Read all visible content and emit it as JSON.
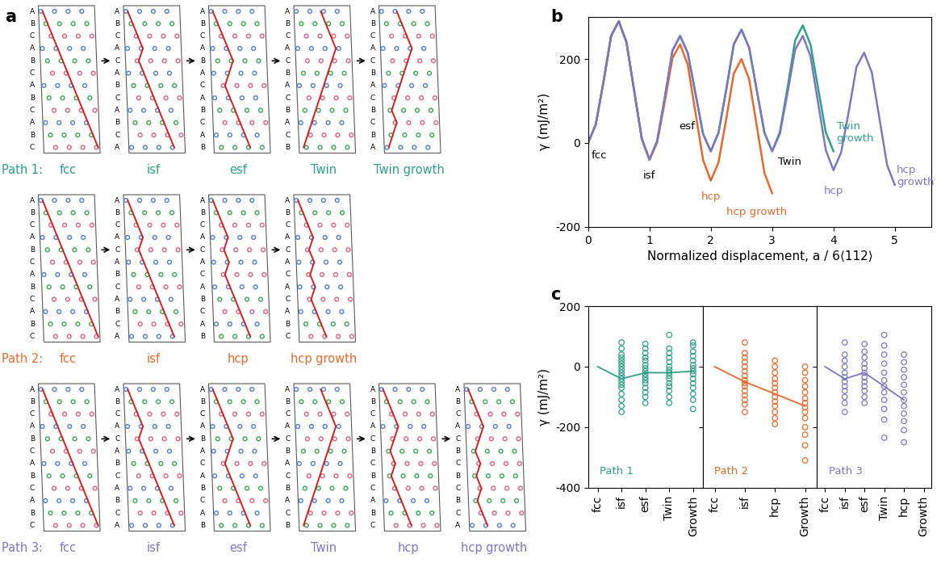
{
  "panel_a": {
    "label": "a",
    "paths": [
      {
        "name": "Path 1:",
        "color": "#2ca089",
        "configs": [
          {
            "label": "fcc",
            "stacking": "ABCABCABCABC"
          },
          {
            "label": "isf",
            "stacking": "ABCACABCABCA"
          },
          {
            "label": "esf",
            "stacking": "ABCABACABCAB"
          },
          {
            "label": "Twin",
            "stacking": "ABCACBACBACB"
          },
          {
            "label": "Twin growth",
            "stacking": "ABCACBACBCBA"
          }
        ]
      },
      {
        "name": "Path 2:",
        "color": "#e8692a",
        "configs": [
          {
            "label": "fcc",
            "stacking": "ABCABCABCABC"
          },
          {
            "label": "isf",
            "stacking": "ABCACABCABCA"
          },
          {
            "label": "hcp",
            "stacking": "ABCACACABCAB"
          },
          {
            "label": "hcp growth",
            "stacking": "ABCACACACABC"
          }
        ]
      },
      {
        "name": "Path 3:",
        "color": "#7d77c2",
        "configs": [
          {
            "label": "fcc",
            "stacking": "ABCABCABCABC"
          },
          {
            "label": "isf",
            "stacking": "ABCACABCABCA"
          },
          {
            "label": "esf",
            "stacking": "ABCABACABCAB"
          },
          {
            "label": "Twin",
            "stacking": "ABCACBACBACB"
          },
          {
            "label": "hcp",
            "stacking": "ABCACBCBCABC"
          },
          {
            "label": "hcp growth",
            "stacking": "ABCACBCBCBCA"
          }
        ]
      }
    ]
  },
  "chart_data": [
    {
      "type": "line",
      "label": "b",
      "xlabel": "Normalized displacement, a / 6⟨112⟩",
      "ylabel": "γ (mJ/m²)",
      "xlim": [
        0,
        5.6
      ],
      "ylim": [
        -200,
        300
      ],
      "xticks": [
        0,
        1,
        2,
        3,
        4,
        5
      ],
      "yticks": [
        -200,
        0,
        200
      ],
      "series": [
        {
          "color": "#2ca089",
          "x": [
            0,
            0.125,
            0.25,
            0.375,
            0.5,
            0.625,
            0.75,
            0.875,
            1,
            1.125,
            1.25,
            1.375,
            1.5,
            1.625,
            1.75,
            1.875,
            2,
            2.125,
            2.25,
            2.375,
            2.5,
            2.625,
            2.75,
            2.875,
            3,
            3.125,
            3.25,
            3.375,
            3.5,
            3.625,
            3.75,
            3.875,
            4
          ],
          "values": [
            0,
            44,
            145,
            255,
            290,
            240,
            125,
            10,
            -40,
            4,
            108,
            220,
            255,
            214,
            118,
            21,
            -20,
            24,
            125,
            235,
            270,
            227,
            125,
            24,
            -20,
            25,
            130,
            244,
            280,
            235,
            130,
            25,
            -20
          ]
        },
        {
          "color": "#e8692a",
          "x": [
            0,
            0.125,
            0.25,
            0.375,
            0.5,
            0.625,
            0.75,
            0.875,
            1,
            1.125,
            1.25,
            1.375,
            1.5,
            1.625,
            1.75,
            1.875,
            2,
            2.125,
            2.25,
            2.375,
            2.5,
            2.625,
            2.75,
            2.875,
            3
          ],
          "values": [
            0,
            44,
            145,
            255,
            290,
            240,
            125,
            10,
            -40,
            1,
            98,
            202,
            235,
            186,
            72,
            -41,
            -90,
            -47,
            55,
            165,
            200,
            152,
            40,
            -72,
            -120
          ]
        },
        {
          "color": "#7d77c2",
          "x": [
            0,
            0.125,
            0.25,
            0.375,
            0.5,
            0.625,
            0.75,
            0.875,
            1,
            1.125,
            1.25,
            1.375,
            1.5,
            1.625,
            1.75,
            1.875,
            2,
            2.125,
            2.25,
            2.375,
            2.5,
            2.625,
            2.75,
            2.875,
            3,
            3.125,
            3.25,
            3.375,
            3.5,
            3.625,
            3.75,
            3.875,
            4,
            4.125,
            4.25,
            4.375,
            4.5,
            4.625,
            4.75,
            4.875,
            5
          ],
          "values": [
            0,
            44,
            145,
            255,
            290,
            240,
            125,
            10,
            -40,
            4,
            108,
            220,
            255,
            214,
            118,
            21,
            -20,
            24,
            125,
            235,
            270,
            227,
            125,
            24,
            -20,
            21,
            118,
            222,
            255,
            207,
            95,
            -17,
            -65,
            -23,
            75,
            181,
            215,
            168,
            58,
            -53,
            -100
          ]
        }
      ],
      "annotations": [
        {
          "text": "fcc",
          "color": "#000000"
        },
        {
          "text": "isf",
          "color": "#000000"
        },
        {
          "text": "esf",
          "color": "#000000"
        },
        {
          "text": "hcp",
          "color": "#e8692a"
        },
        {
          "text": "hcp growth",
          "color": "#e8692a"
        },
        {
          "text": "Twin",
          "color": "#000000"
        },
        {
          "text": "Twin\ngrowth",
          "color": "#2ca089"
        },
        {
          "text": "hcp",
          "color": "#7d77c2"
        },
        {
          "text": "hcp\ngrowth",
          "color": "#7d77c2"
        }
      ]
    },
    {
      "type": "scatter",
      "label": "c",
      "ylabel": "γ (mJ/m²)",
      "text": "Path 1",
      "color": "#2ca089",
      "ylim": [
        -400,
        200
      ],
      "yticks": [
        -400,
        -200,
        0,
        200
      ],
      "categories": [
        "fcc",
        "isf",
        "esf",
        "Twin",
        "Growth"
      ],
      "values": [
        0,
        -40,
        -20,
        -20,
        -15
      ],
      "points": [
        [],
        [
          80,
          60,
          40,
          30,
          20,
          10,
          0,
          -10,
          -20,
          -30,
          -40,
          -50,
          -60,
          -70,
          -90,
          -110,
          -130,
          -150
        ],
        [
          75,
          60,
          45,
          30,
          20,
          5,
          -5,
          -15,
          -25,
          -35,
          -45,
          -55,
          -70,
          -85,
          -100,
          -120
        ],
        [
          105,
          60,
          45,
          30,
          15,
          0,
          -10,
          -20,
          -30,
          -40,
          -55,
          -65,
          -80,
          -100,
          -120
        ],
        [
          80,
          70,
          50,
          35,
          20,
          5,
          -5,
          -15,
          -25,
          -40,
          -55,
          -70,
          -90,
          -110,
          -140
        ]
      ]
    },
    {
      "type": "scatter",
      "text": "Path 2",
      "color": "#e8692a",
      "tick_labels": "x",
      "ylim": [
        -400,
        200
      ],
      "yticks": [
        -400,
        -200,
        0,
        200
      ],
      "categories": [
        "fcc",
        "isf",
        "hcp",
        "Growth"
      ],
      "values": [
        0,
        -50,
        -90,
        -130
      ],
      "points": [
        [],
        [
          80,
          45,
          30,
          15,
          0,
          -15,
          -30,
          -45,
          -55,
          -65,
          -80,
          -95,
          -110,
          -125,
          -150
        ],
        [
          20,
          0,
          -20,
          -40,
          -55,
          -70,
          -85,
          -100,
          -115,
          -130,
          -150,
          -170,
          -190
        ],
        [
          0,
          -20,
          -45,
          -65,
          -85,
          -105,
          -120,
          -135,
          -150,
          -170,
          -200,
          -225,
          -260,
          -310
        ]
      ]
    },
    {
      "type": "scatter",
      "text": "Path 3",
      "color": "#7d77c2",
      "tick_labels": "x",
      "ylim": [
        -400,
        200
      ],
      "yticks": [
        -400,
        -200,
        0,
        200
      ],
      "categories": [
        "fcc",
        "isf",
        "esf",
        "Twin",
        "hcp",
        "Growth"
      ],
      "values": [
        0,
        -40,
        -20,
        -65,
        -110,
        null
      ],
      "points": [
        [],
        [
          80,
          40,
          20,
          0,
          -20,
          -35,
          -50,
          -65,
          -80,
          -100,
          -120,
          -150
        ],
        [
          75,
          50,
          30,
          10,
          -5,
          -20,
          -35,
          -50,
          -65,
          -80,
          -100,
          -120
        ],
        [
          105,
          70,
          40,
          10,
          -20,
          -45,
          -65,
          -85,
          -110,
          -140,
          -175,
          -235
        ],
        [
          40,
          15,
          -10,
          -35,
          -60,
          -85,
          -110,
          -130,
          -155,
          -180,
          -210,
          -250
        ],
        []
      ]
    }
  ]
}
